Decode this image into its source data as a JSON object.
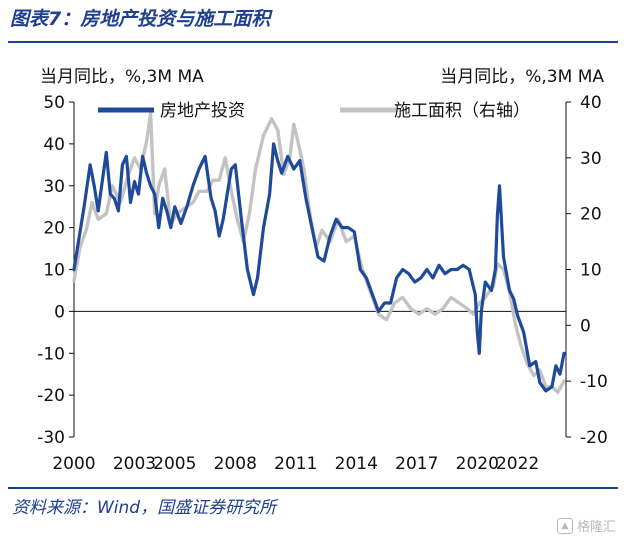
{
  "figure": {
    "title": "图表7：房地产投资与施工面积",
    "source": "资料来源：Wind，国盛证券研究所",
    "watermark": "格隆汇"
  },
  "colors": {
    "investment": "#1f4a9c",
    "construction": "#c3c3c3",
    "title": "#1f3f8f"
  },
  "chart_data": {
    "type": "line",
    "left_unit": "当月同比，%,3M MA",
    "right_unit": "当月同比，%,3M MA",
    "ylim_left": [
      -30,
      50
    ],
    "ylim_right": [
      -20,
      40
    ],
    "yticks_left": [
      "50",
      "40",
      "30",
      "20",
      "10",
      "0",
      "-10",
      "-20",
      "-30"
    ],
    "yticks_right": [
      "40",
      "30",
      "20",
      "10",
      "0",
      "-10",
      "-20"
    ],
    "xlim": [
      2000,
      2024.4
    ],
    "xticks": [
      "2000",
      "2003",
      "2005",
      "2008",
      "2011",
      "2014",
      "2017",
      "2020",
      "2022"
    ],
    "grid": false,
    "legend_position": "top",
    "series": [
      {
        "name": "房地产投资",
        "axis": "left",
        "x": [
          2000.0,
          2000.2,
          2000.5,
          2000.8,
          2001.0,
          2001.2,
          2001.4,
          2001.6,
          2001.8,
          2002.0,
          2002.2,
          2002.4,
          2002.6,
          2002.8,
          2003.0,
          2003.2,
          2003.4,
          2003.6,
          2003.8,
          2004.0,
          2004.2,
          2004.4,
          2004.6,
          2004.8,
          2005.0,
          2005.3,
          2005.6,
          2005.9,
          2006.2,
          2006.5,
          2006.8,
          2007.0,
          2007.2,
          2007.4,
          2007.6,
          2007.8,
          2008.0,
          2008.3,
          2008.6,
          2008.9,
          2009.1,
          2009.4,
          2009.7,
          2009.9,
          2010.1,
          2010.3,
          2010.6,
          2010.9,
          2011.2,
          2011.5,
          2011.8,
          2012.1,
          2012.4,
          2012.7,
          2013.0,
          2013.3,
          2013.6,
          2013.9,
          2014.2,
          2014.5,
          2014.8,
          2015.1,
          2015.4,
          2015.7,
          2016.0,
          2016.3,
          2016.6,
          2016.9,
          2017.2,
          2017.5,
          2017.8,
          2018.1,
          2018.4,
          2018.7,
          2019.0,
          2019.3,
          2019.6,
          2019.9,
          2020.0,
          2020.1,
          2020.2,
          2020.4,
          2020.7,
          2020.9,
          2021.0,
          2021.1,
          2021.3,
          2021.6,
          2021.8,
          2022.0,
          2022.3,
          2022.6,
          2022.9,
          2023.1,
          2023.4,
          2023.7,
          2023.9,
          2024.1,
          2024.3
        ],
        "values": [
          10,
          16,
          25,
          35,
          30,
          24,
          31,
          38,
          28,
          27,
          24,
          35,
          37,
          26,
          31,
          28,
          37,
          33,
          30,
          28,
          20,
          27,
          24,
          20,
          25,
          21,
          25,
          30,
          34,
          37,
          27,
          24,
          18,
          22,
          28,
          34,
          35,
          22,
          10,
          4,
          8,
          20,
          28,
          40,
          36,
          33,
          37,
          34,
          36,
          27,
          20,
          13,
          12,
          18,
          22,
          20,
          20,
          19,
          10,
          8,
          4,
          0,
          2,
          2,
          8,
          10,
          9,
          7,
          8,
          10,
          8,
          11,
          9,
          10,
          10,
          11,
          10,
          4,
          -5,
          -10,
          0,
          7,
          5,
          10,
          23,
          30,
          13,
          5,
          3,
          -1,
          -5,
          -13,
          -12,
          -17,
          -19,
          -18,
          -13,
          -15,
          -10
        ]
      },
      {
        "name": "施工面积（右轴）",
        "axis": "right",
        "x": [
          2000.0,
          2000.3,
          2000.6,
          2000.9,
          2001.2,
          2001.6,
          2001.9,
          2002.3,
          2002.7,
          2003.0,
          2003.3,
          2003.6,
          2003.8,
          2004.0,
          2004.2,
          2004.5,
          2004.8,
          2005.1,
          2005.5,
          2005.9,
          2006.2,
          2006.6,
          2006.9,
          2007.2,
          2007.5,
          2007.8,
          2008.1,
          2008.4,
          2008.7,
          2009.0,
          2009.4,
          2009.8,
          2010.1,
          2010.4,
          2010.7,
          2010.9,
          2011.1,
          2011.4,
          2011.7,
          2012.0,
          2012.3,
          2012.7,
          2013.1,
          2013.5,
          2013.9,
          2014.3,
          2014.7,
          2015.1,
          2015.5,
          2015.9,
          2016.3,
          2016.7,
          2017.1,
          2017.5,
          2017.9,
          2018.3,
          2018.7,
          2019.1,
          2019.5,
          2019.8,
          2020.1,
          2020.4,
          2020.8,
          2021.0,
          2021.3,
          2021.6,
          2021.9,
          2022.2,
          2022.5,
          2022.8,
          2023.1,
          2023.4,
          2023.7,
          2024.0,
          2024.3
        ],
        "values": [
          8,
          14,
          17,
          22,
          19,
          20,
          25,
          22,
          27,
          30,
          28,
          33,
          38,
          20,
          25,
          28,
          18,
          20,
          21,
          22,
          24,
          24,
          26,
          26,
          30,
          24,
          19,
          15,
          20,
          28,
          34,
          37,
          35,
          27,
          30,
          36,
          33,
          28,
          20,
          14,
          17,
          15,
          19,
          15,
          16,
          10,
          6,
          2,
          1,
          4,
          5,
          3,
          2,
          3,
          2,
          3,
          5,
          4,
          3,
          2,
          4,
          5,
          7,
          11,
          10,
          6,
          0,
          -4,
          -7,
          -9,
          -8,
          -11,
          -11,
          -12,
          -10
        ]
      }
    ]
  }
}
